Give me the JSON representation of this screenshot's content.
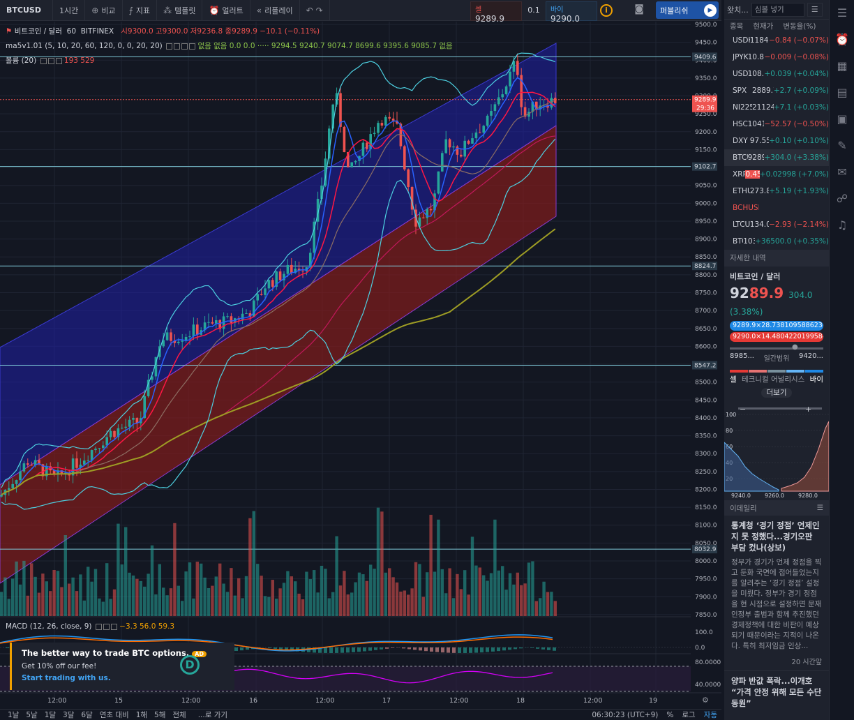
{
  "toolbar": {
    "symbol": "BTCUSD",
    "interval": "1시간",
    "compare": "비교",
    "indicators": "지표",
    "templates": "템플릿",
    "alert": "얼러트",
    "replay": "리플레이",
    "publish": "퍼블리쉬"
  },
  "trade": {
    "sell_label": "셀",
    "sell_price": "9289.9",
    "spread": "0.1",
    "buy_label": "바이",
    "buy_price": "9290.0"
  },
  "legend": {
    "title": "비트코인 / 달러",
    "interval": "60",
    "exchange": "BITFINEX",
    "ohlc": "시9300.0  고9300.0  저9236.8  종9289.9  −10.1 (−0.11%)",
    "ma": "ma5v1.01 (5, 10, 20, 60, 120, 0, 0, 20, 20)",
    "ma_values": "없음  없음  0.0  0.0  ·····  9294.5  9240.7  9074.7  8699.6  9395.6  9085.7  없음",
    "volume": "볼륨 (20)",
    "volume_values": "193  529",
    "macd": "MACD (12, 26, close, 9)",
    "macd_values": "−3.3  56.0  59.3"
  },
  "price_axis": {
    "ticks": [
      "9500.0",
      "9450.0",
      "9400.0",
      "9350.0",
      "9300.0",
      "9250.0",
      "9200.0",
      "9150.0",
      "9100.0",
      "9050.0",
      "9000.0",
      "8950.0",
      "8900.0",
      "8850.0",
      "8800.0",
      "8750.0",
      "8700.0",
      "8650.0",
      "8600.0",
      "8550.0",
      "8500.0",
      "8450.0",
      "8400.0",
      "8350.0",
      "8300.0",
      "8250.0",
      "8200.0",
      "8150.0",
      "8100.0",
      "8050.0",
      "8000.0",
      "7950.0",
      "7900.0",
      "7850.0"
    ],
    "hlines": [
      "9409.6",
      "9102.7",
      "8824.7",
      "8547.2",
      "8032.9"
    ],
    "current_price": "9289.9",
    "countdown": "29:36",
    "macd_ticks": [
      "100.0",
      "0.0"
    ],
    "rsi_ticks": [
      "80.0000",
      "40.0000"
    ]
  },
  "time_axis": {
    "labels": [
      "12:00",
      "15",
      "12:00",
      "16",
      "12:00",
      "17",
      "12:00",
      "18",
      "12:00",
      "19",
      "12:00"
    ]
  },
  "ad": {
    "title": "The better way to trade BTC options.",
    "badge": "AD",
    "body": "Get 10% off our fee!",
    "link": "Start trading with us."
  },
  "bottombar": {
    "ranges": [
      "1날",
      "5날",
      "1달",
      "3달",
      "6달",
      "연초 대비",
      "1해",
      "5해",
      "전체"
    ],
    "goto": "...로 가기",
    "clock": "06:30:23 (UTC+9)",
    "percent": "%",
    "log": "로그",
    "auto": "자동"
  },
  "watchlist": {
    "header": "왓치...",
    "search_placeholder": "심볼 넣기",
    "col_symbol": "종목",
    "col_price": "현재가",
    "col_change": "변동율(%)",
    "rows": [
      {
        "s": "USDKRW",
        "p": "1184.39",
        "c": "−0.84 (−0.07%)",
        "dir": "dn"
      },
      {
        "s": "JPYKRW",
        "p": "10.894",
        "c": "−0.009 (−0.08%)",
        "dir": "dn"
      },
      {
        "s": "USDJPY",
        "p": "108.562",
        "c": "+0.039 (+0.04%)",
        "dir": "up"
      },
      {
        "s": "SPX",
        "p": "2889.7",
        "c": "+2.7 (+0.09%)",
        "dir": "up"
      },
      {
        "s": "NI225",
        "p": "21124.0",
        "c": "+7.1 (+0.03%)",
        "dir": "up"
      },
      {
        "s": "HSCEI",
        "p": "10419.87",
        "c": "−52.57 (−0.50%)",
        "dir": "dn"
      },
      {
        "s": "DXY",
        "p": "97.55",
        "c": "+0.10 (+0.10%)",
        "dir": "up"
      },
      {
        "s": "BTCUSD",
        "p": "9289.9",
        "c": "+304.0 (+3.38%)",
        "dir": "up"
      },
      {
        "s": "XRPUSD",
        "p": "0.45836",
        "c": "+0.02998 (+7.0%)",
        "dir": "up"
      },
      {
        "s": "ETHUSD",
        "p": "273.82",
        "c": "+5.19 (+1.93%)",
        "dir": "up"
      },
      {
        "s": "BCHUSD",
        "p": "",
        "c": "",
        "dir": "dn"
      },
      {
        "s": "LTCUSD",
        "p": "134.07",
        "c": "−2.93 (−2.14%)",
        "dir": "dn"
      },
      {
        "s": "BTCKRW",
        "p": "10352000.0",
        "c": "+36500.0 (+0.35%)",
        "dir": "up"
      }
    ]
  },
  "details": {
    "header": "자세한 내역",
    "name": "비트코인 / 달러",
    "price_major": "92",
    "price_minor": "89.9",
    "change": "304.0 (3.38%)",
    "bid_pill": "9289.9×28.738109588623047",
    "ask_pill": "9290.0×14.480422019958496",
    "range_low": "8985...",
    "range_label": "일간범위",
    "range_high": "9420...",
    "tech_sell": "셀",
    "tech_label": "테크니컬 어널리시스",
    "tech_buy": "바이",
    "more": "더보기",
    "depth_y": [
      "100",
      "80",
      "60",
      "40",
      "20"
    ],
    "depth_x": [
      "9240.0",
      "9260.0",
      "9280.0"
    ]
  },
  "news": {
    "source": "이데일리",
    "title": "통계청 ‘경기 정점’ 언제인지 못 정했다...경기오판 부담 컸나(상보)",
    "body": "정부가 경기가 언제 정점을 찍고 둔화 국면에 접어들었는지를 알려주는 ‘경기 정점’ 설정을 미뤘다. 정부가 경기 정점을 현 시점으로 설정하면 문재인정부 출범과 함께 추진했던 경제정책에 대한 비판이 예상되기 때문이라는 지적이 나온다. 특히 최저임금 인상...",
    "time": "20 시간앞",
    "title2": "양파 반값 폭락...이개호 “가격 안정 위해 모든 수단 동원”"
  },
  "colors": {
    "background": "#131722",
    "up": "#26a69a",
    "down": "#ef5350",
    "channel_upper": "#1a1a9e",
    "channel_lower": "#8b1a1a"
  }
}
